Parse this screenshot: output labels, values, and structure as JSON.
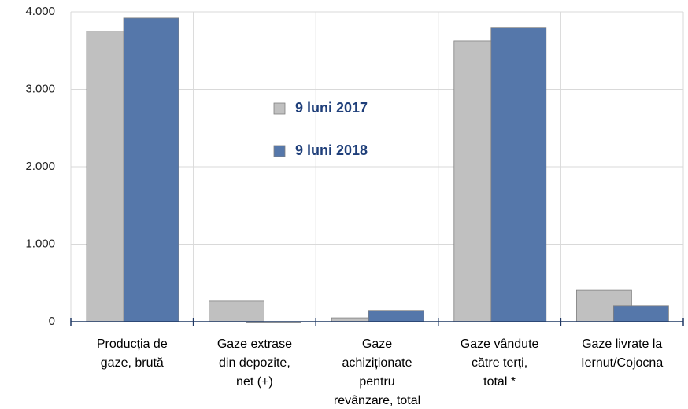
{
  "chart_data": {
    "type": "bar",
    "categories": [
      [
        "Producția de",
        "gaze, brută"
      ],
      [
        "Gaze extrase",
        "din depozite,",
        "net (+)"
      ],
      [
        "Gaze",
        "achiziționate",
        "pentru",
        "revânzare, total"
      ],
      [
        "Gaze vândute",
        "către terți,",
        "total *"
      ],
      [
        "Gaze livrate la",
        "Iernut/Cojocna"
      ]
    ],
    "series": [
      {
        "name": "9 luni 2017",
        "color": "#c0c0c0",
        "values": [
          3750,
          265,
          50,
          3625,
          405
        ]
      },
      {
        "name": "9 luni 2018",
        "color": "#5577aa",
        "values": [
          3920,
          -15,
          145,
          3800,
          205
        ]
      }
    ],
    "ylim": [
      0,
      4000
    ],
    "yticks": [
      0,
      {
        "value": 1000,
        "label": "1.000"
      },
      {
        "value": 2000,
        "label": "2.000"
      },
      {
        "value": 3000,
        "label": "3.000"
      },
      {
        "value": 4000,
        "label": "4.000"
      }
    ],
    "grid": true
  }
}
